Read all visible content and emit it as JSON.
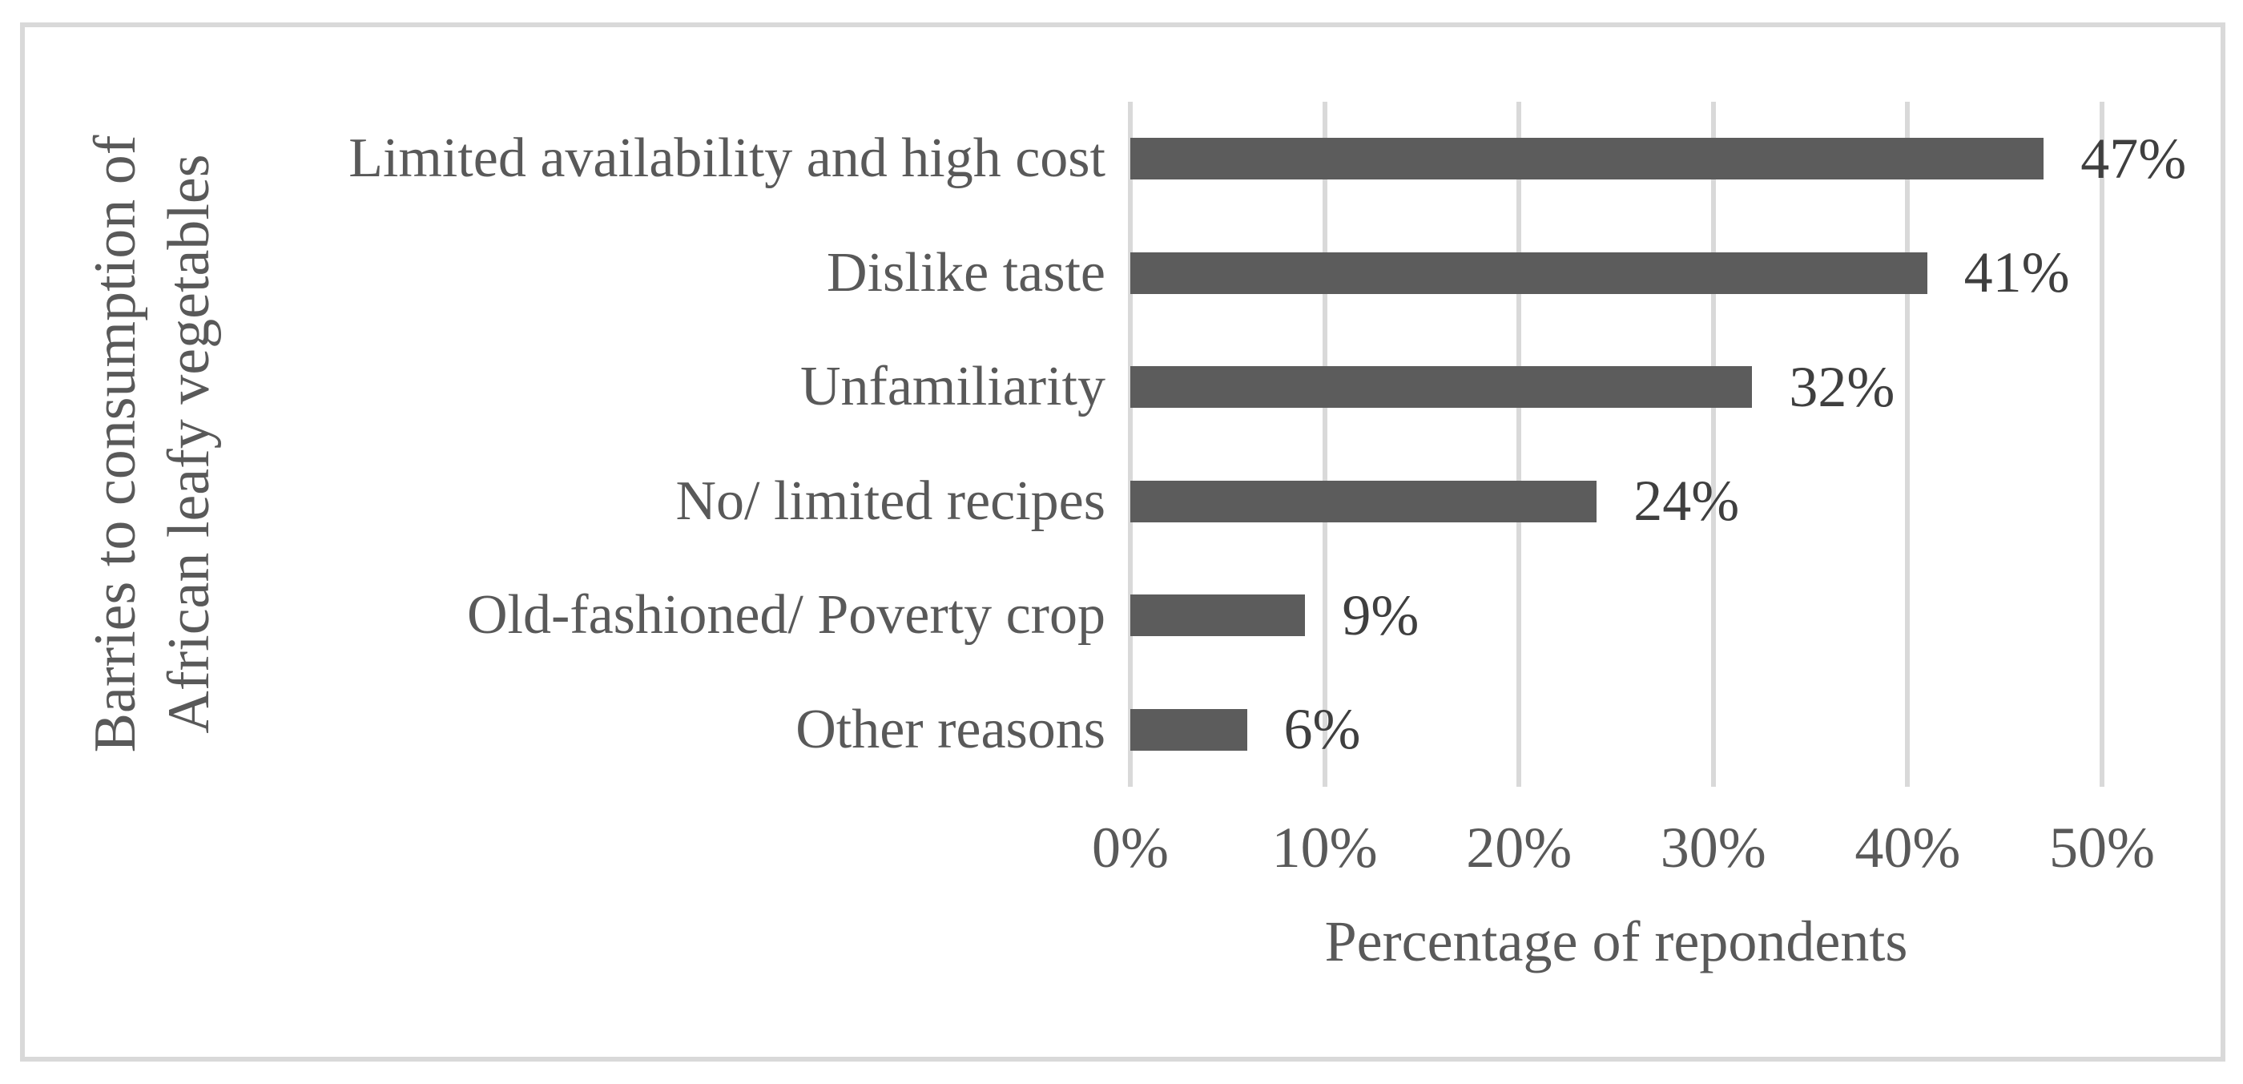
{
  "figure": {
    "background": "#ffffff",
    "border_color": "#d9d9d9"
  },
  "chart_data": {
    "type": "bar",
    "orientation": "horizontal",
    "categories": [
      "Limited availability and high cost",
      "Dislike taste",
      "Unfamiliarity",
      "No/ limited recipes",
      "Old-fashioned/ Poverty crop",
      "Other reasons"
    ],
    "values": [
      47,
      41,
      32,
      24,
      9,
      6
    ],
    "data_labels": [
      "47%",
      "41%",
      "32%",
      "24%",
      "9%",
      "6%"
    ],
    "x_ticks": [
      "0%",
      "10%",
      "20%",
      "30%",
      "40%",
      "50%"
    ],
    "x_tick_values": [
      0,
      10,
      20,
      30,
      40,
      50
    ],
    "xlim": [
      0,
      50
    ],
    "xlabel": "Percentage of repondents",
    "ylabel_lines": [
      "Barries to consumption of",
      "African leafy vegetables"
    ],
    "grid": "vertical-gridlines-on",
    "legend": "none",
    "bar_color": "#5c5c5c",
    "gridline_color": "#d9d9d9",
    "value_label_color": "#3f3f3f",
    "text_color": "#595959"
  }
}
